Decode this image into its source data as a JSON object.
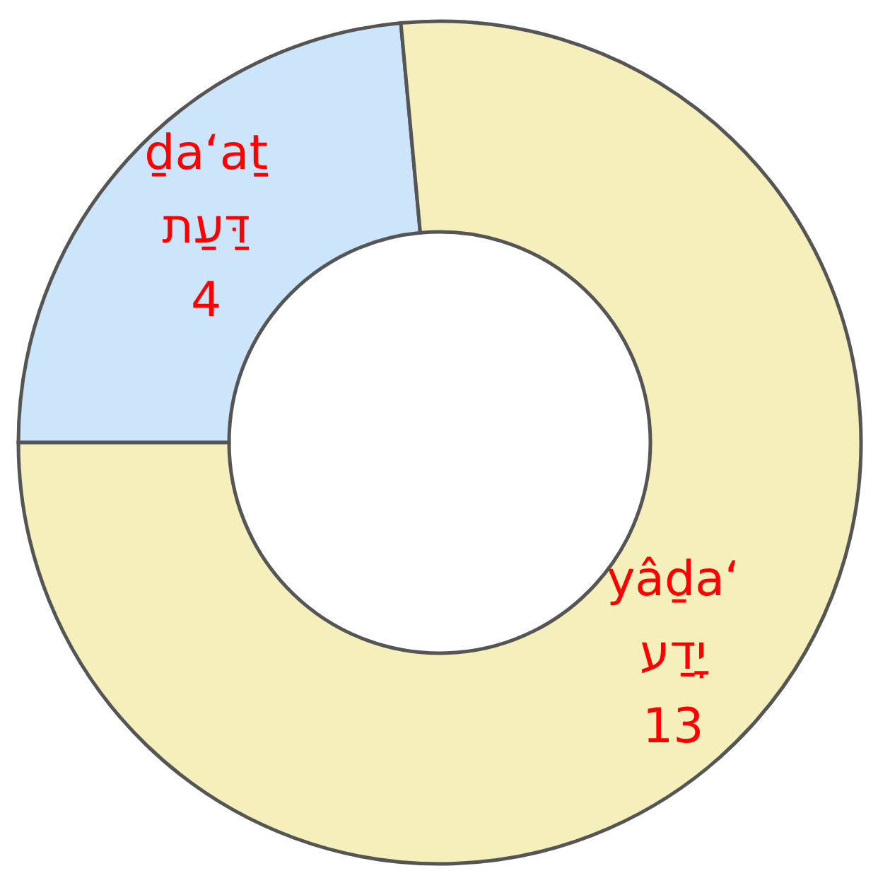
{
  "chart_data": {
    "type": "donut",
    "categories": [
      "ḏa‘aṯ\nדַּעַת",
      "yâḏa‘\nיָדַע"
    ],
    "values": [
      4,
      13
    ],
    "colors": [
      "#cce5fb",
      "#f5efbb"
    ],
    "data_labels": true
  }
}
